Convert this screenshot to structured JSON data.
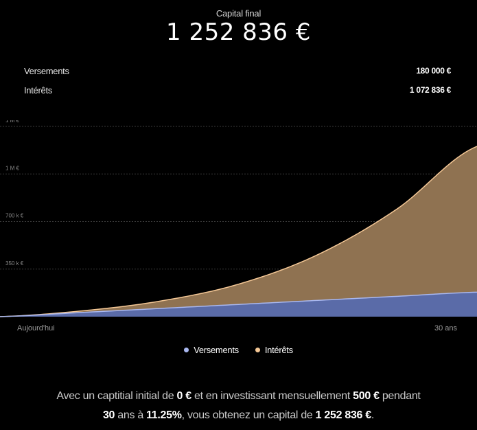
{
  "header": {
    "final_label": "Capital final",
    "final_value": "1 252 836 €"
  },
  "summary": {
    "versements_label": "Versements",
    "versements_value": "180 000 €",
    "interets_label": "Intérêts",
    "interets_value": "1 072 836 €"
  },
  "legend": {
    "versements": "Versements",
    "interets": "Intérêts"
  },
  "sentence": {
    "part1": "Avec un captitial initial de ",
    "initial": "0 €",
    "part2": " et en investissant mensuellement ",
    "monthly": "500 €",
    "part3": " pendant ",
    "years": "30",
    "part4": " ans à ",
    "rate": "11.25%",
    "part5": ", vous obtenez un capital de ",
    "final": "1 252 836 €",
    "part6": "."
  },
  "colors": {
    "versements": "#5a6ba8",
    "versements_line": "#a9b8f0",
    "interets": "#8f7251",
    "interets_line": "#f5c896",
    "grid": "#3a3a3a"
  },
  "chart_data": {
    "type": "area",
    "stacked": true,
    "x_tick_labels": [
      "Aujourd'hui",
      "30 ans"
    ],
    "y_tick_labels": [
      "350 k €",
      "700 k €",
      "1 M €",
      "1 M €"
    ],
    "y_ticks": [
      350000,
      700000,
      1050000,
      1400000
    ],
    "ylim": [
      0,
      1400000
    ],
    "x": [
      0,
      5,
      10,
      15,
      20,
      25,
      30
    ],
    "series": [
      {
        "name": "Versements",
        "values": [
          0,
          30000,
          60000,
          90000,
          120000,
          150000,
          180000
        ]
      },
      {
        "name": "Intérêts",
        "values": [
          0,
          11000,
          53000,
          149000,
          337000,
          645000,
          1072836
        ]
      }
    ],
    "grid": true
  }
}
